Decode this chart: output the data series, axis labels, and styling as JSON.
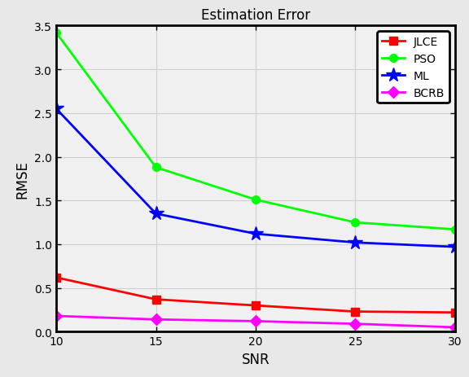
{
  "title": "Estimation Error",
  "xlabel": "SNR",
  "ylabel": "RMSE",
  "snr": [
    10,
    15,
    20,
    25,
    30
  ],
  "series": [
    {
      "label": "JLCE",
      "color": "#ff0000",
      "marker": "s",
      "markersize": 7,
      "linewidth": 2.0,
      "values": [
        0.62,
        0.37,
        0.3,
        0.23,
        0.22
      ]
    },
    {
      "label": "PSO",
      "color": "#00ff00",
      "marker": "o",
      "markersize": 7,
      "linewidth": 2.0,
      "values": [
        3.42,
        1.88,
        1.51,
        1.25,
        1.17
      ]
    },
    {
      "label": "ML",
      "color": "#0000ff",
      "marker": "*",
      "markersize": 13,
      "linewidth": 2.0,
      "values": [
        2.55,
        1.35,
        1.12,
        1.02,
        0.97
      ]
    },
    {
      "label": "BCRB",
      "color": "#ff00ff",
      "marker": "D",
      "markersize": 7,
      "linewidth": 2.0,
      "values": [
        0.18,
        0.14,
        0.12,
        0.09,
        0.05
      ]
    }
  ],
  "xlim": [
    10,
    30
  ],
  "ylim": [
    0,
    3.5
  ],
  "yticks": [
    0,
    0.5,
    1.0,
    1.5,
    2.0,
    2.5,
    3.0,
    3.5
  ],
  "xticks": [
    10,
    15,
    20,
    25,
    30
  ],
  "grid": true,
  "legend_loc": "upper right",
  "fig_facecolor": "#e8e8e8",
  "axes_facecolor": "#f0f0f0",
  "title_fontsize": 12,
  "axis_label_fontsize": 12,
  "tick_fontsize": 10
}
